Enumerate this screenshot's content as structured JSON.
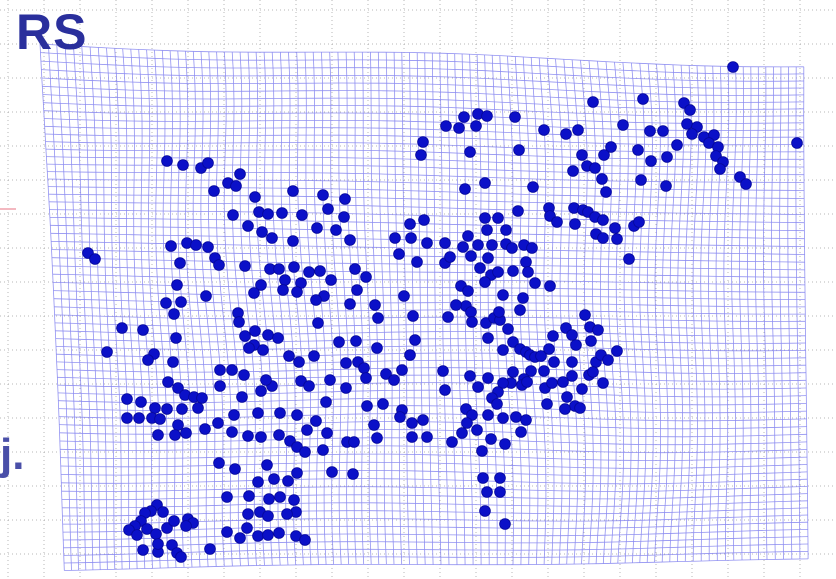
{
  "slide": {
    "title": "RS",
    "side_label": "j."
  },
  "colors": {
    "background": "#ffffff",
    "grid_line": "#8c8cf0",
    "grid_border": "#6a6ae0",
    "dot_fill": "#0b10c8",
    "dot_stroke": "#06089a",
    "dotted_guides": "#9a9a9a",
    "title": "#2a2f9c"
  },
  "figure": {
    "type": "deformed grid with scattered point markers",
    "grid_on": true,
    "background_dotted_guides": true,
    "marker": "filled circle"
  }
}
